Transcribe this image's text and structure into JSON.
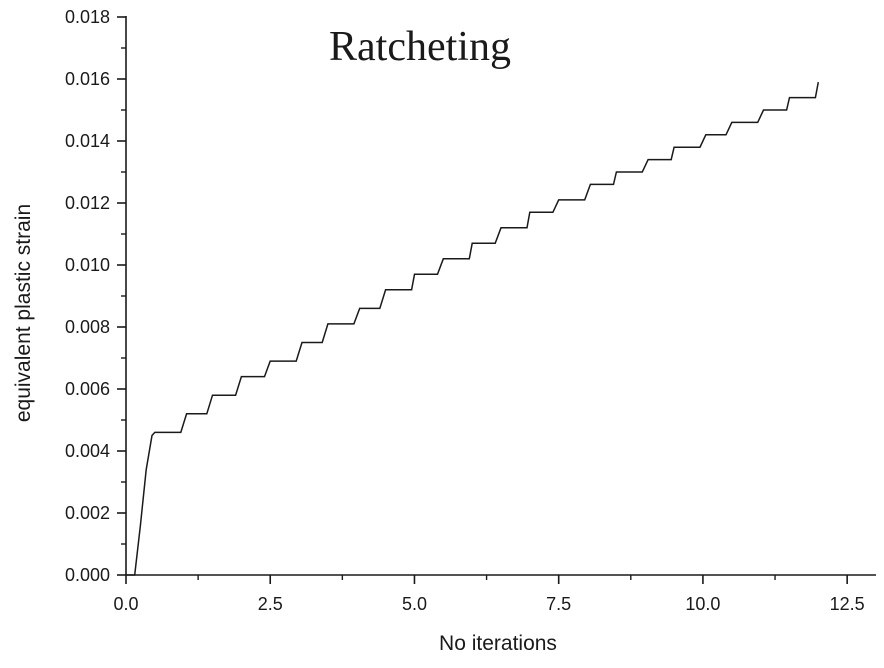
{
  "chart_data": {
    "type": "line",
    "title": "Ratcheting",
    "xlabel": "No iterations",
    "ylabel": "equivalent plastic strain",
    "xlim": [
      0,
      13
    ],
    "ylim": [
      0,
      0.018
    ],
    "x_ticks": [
      0.0,
      2.5,
      5.0,
      7.5,
      10.0,
      12.5
    ],
    "x_tick_labels": [
      "0.0",
      "2.5",
      "5.0",
      "7.5",
      "10.0",
      "12.5"
    ],
    "x_minor_ticks": [
      1.25,
      3.75,
      6.25,
      8.75,
      11.25
    ],
    "y_ticks": [
      0.0,
      0.002,
      0.004,
      0.006,
      0.008,
      0.01,
      0.012,
      0.014,
      0.016,
      0.018
    ],
    "y_tick_labels": [
      "0.000",
      "0.002",
      "0.004",
      "0.006",
      "0.008",
      "0.010",
      "0.012",
      "0.014",
      "0.016",
      "0.018"
    ],
    "y_minor_ticks": [
      0.001,
      0.003,
      0.005,
      0.007,
      0.009,
      0.011,
      0.013,
      0.015,
      0.017
    ],
    "grid": false,
    "legend": "none",
    "line_color": "#1a1a1a",
    "series": [
      {
        "x": [
          0.0,
          0.15,
          0.25,
          0.35,
          0.45,
          0.5,
          0.95,
          1.05,
          1.4,
          1.5,
          1.9,
          2.0,
          2.4,
          2.5,
          2.95,
          3.05,
          3.4,
          3.5,
          3.95,
          4.05,
          4.4,
          4.5,
          4.95,
          5.0,
          5.4,
          5.5,
          5.95,
          6.0,
          6.4,
          6.5,
          6.95,
          7.0,
          7.4,
          7.5,
          7.95,
          8.05,
          8.45,
          8.5,
          8.95,
          9.05,
          9.45,
          9.5,
          9.95,
          10.05,
          10.4,
          10.5,
          10.95,
          11.05,
          11.45,
          11.5,
          11.95,
          12.0
        ],
        "y": [
          0.0,
          0.0,
          0.0016,
          0.0034,
          0.0045,
          0.0046,
          0.0046,
          0.0052,
          0.0052,
          0.0058,
          0.0058,
          0.0064,
          0.0064,
          0.0069,
          0.0069,
          0.0075,
          0.0075,
          0.0081,
          0.0081,
          0.0086,
          0.0086,
          0.0092,
          0.0092,
          0.0097,
          0.0097,
          0.0102,
          0.0102,
          0.0107,
          0.0107,
          0.0112,
          0.0112,
          0.0117,
          0.0117,
          0.0121,
          0.0121,
          0.0126,
          0.0126,
          0.013,
          0.013,
          0.0134,
          0.0134,
          0.0138,
          0.0138,
          0.0142,
          0.0142,
          0.0146,
          0.0146,
          0.015,
          0.015,
          0.0154,
          0.0154,
          0.0159
        ]
      }
    ]
  }
}
